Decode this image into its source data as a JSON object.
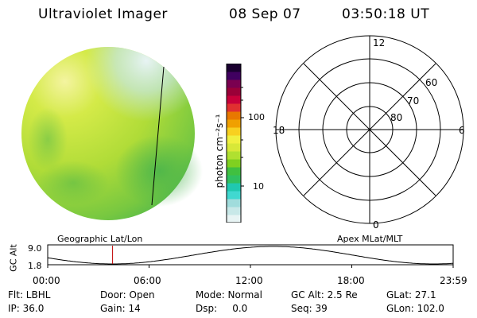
{
  "header": {
    "title": "Ultraviolet Imager",
    "date": "08 Sep 07",
    "time": "03:50:18 UT"
  },
  "colorbar": {
    "label": "photon cm⁻²s⁻¹",
    "ticks": [
      "100",
      "10"
    ],
    "colors": [
      "#e8f4f4",
      "#c8e8e8",
      "#a0dcdc",
      "#40d8d0",
      "#20c8b0",
      "#30c060",
      "#40c040",
      "#80d020",
      "#b0e030",
      "#d8e838",
      "#f0f040",
      "#f8d020",
      "#f0a000",
      "#e87800",
      "#e03030",
      "#c8003a",
      "#9a0038",
      "#7a0050",
      "#400060",
      "#1a0030"
    ]
  },
  "polar_grid": {
    "labels": {
      "top": "12",
      "bottom": "0",
      "left": "18",
      "right": "6"
    },
    "latitudes": [
      "60",
      "70",
      "80"
    ]
  },
  "orbit": {
    "left_label": "Geographic Lat/Lon",
    "right_label": "Apex  MLat/MLT",
    "y_axis_label": "GC Alt",
    "y_max": "9.0",
    "y_min": "1.8",
    "x_ticks": [
      "00:00",
      "06:00",
      "12:00",
      "18:00",
      "23:59"
    ],
    "marker_time_hours": 3.84
  },
  "info": {
    "row1": [
      {
        "text": "Flt: LBHL",
        "pos": "c1"
      },
      {
        "text": "Door: Open",
        "pos": "c2"
      },
      {
        "text": "Mode: Normal",
        "pos": "c3"
      },
      {
        "text": "GC Alt: 2.5 Re",
        "pos": "c4"
      },
      {
        "text": "GLat:  27.1",
        "pos": "c5"
      }
    ],
    "row2": [
      {
        "text": "IP: 36.0",
        "pos": "c1"
      },
      {
        "text": "Gain: 14",
        "pos": "c2"
      },
      {
        "text": "Dsp:     0.0",
        "pos": "c3"
      },
      {
        "text": "Seq: 39",
        "pos": "c4"
      },
      {
        "text": "GLon: 102.0",
        "pos": "c5"
      }
    ]
  }
}
